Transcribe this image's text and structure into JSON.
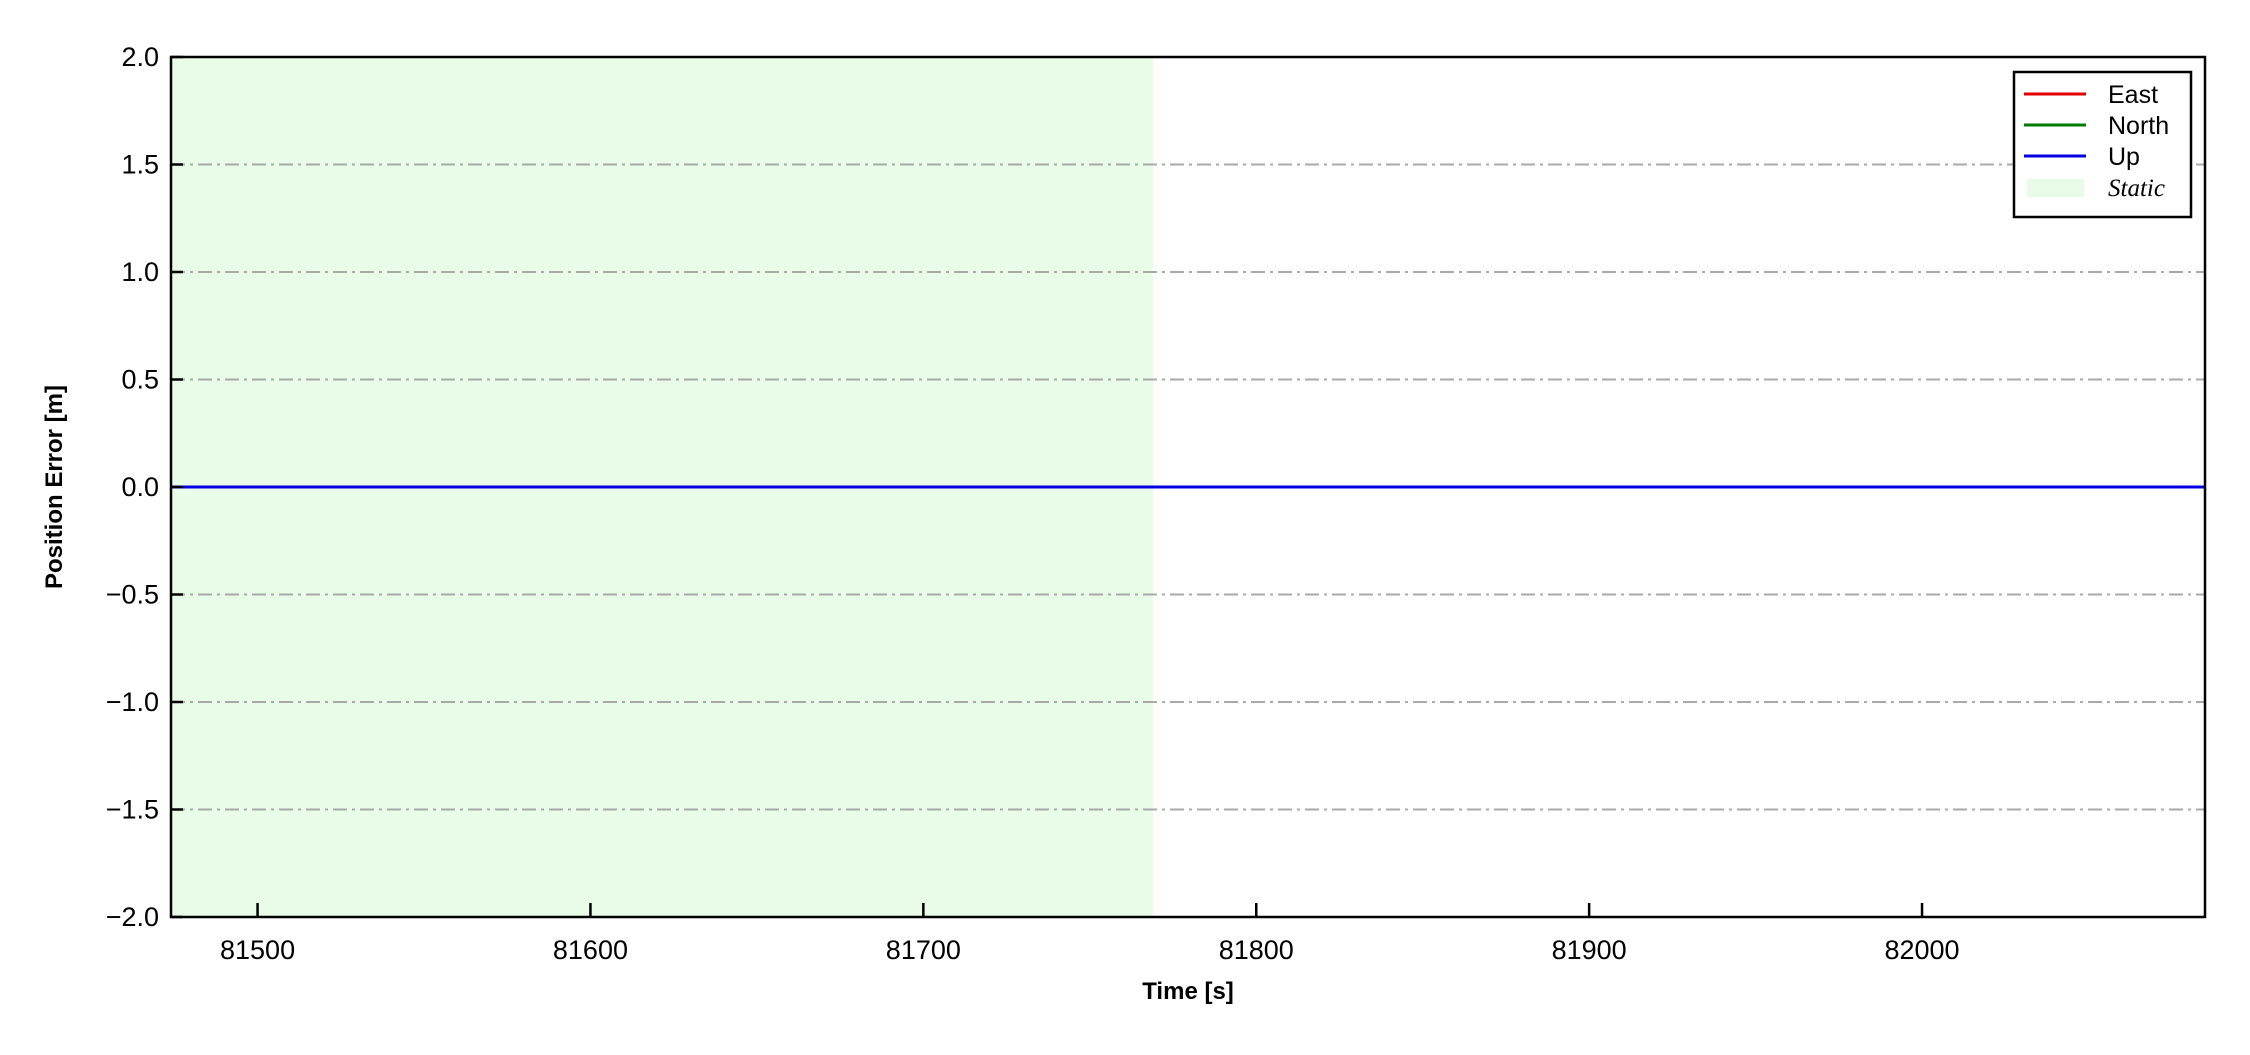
{
  "chart_data": {
    "type": "line",
    "title": "",
    "xlabel": "Time [s]",
    "ylabel": "Position Error [m]",
    "xlim": [
      81474,
      82085
    ],
    "ylim": [
      -2.0,
      2.0
    ],
    "xticks": [
      81500,
      81600,
      81700,
      81800,
      81900,
      82000
    ],
    "xtick_labels": [
      "81500",
      "81600",
      "81700",
      "81800",
      "81900",
      "82000"
    ],
    "yticks": [
      2.0,
      1.5,
      1.0,
      0.5,
      0.0,
      -0.5,
      -1.0,
      -1.5,
      -2.0
    ],
    "ytick_labels": [
      "2.0",
      "1.5",
      "1.0",
      "0.5",
      "0.0",
      "−0.5",
      "−1.0",
      "−1.5",
      "−2.0"
    ],
    "grid": {
      "axis": "y",
      "style": "dash-dot",
      "color": "#a9a9a9"
    },
    "legend_position": "top-right",
    "series": [
      {
        "name": "East",
        "color": "#e00000",
        "x": [
          81474,
          82085
        ],
        "y": [
          0.0,
          0.0
        ]
      },
      {
        "name": "North",
        "color": "#007a00",
        "x": [
          81474,
          82085
        ],
        "y": [
          0.0,
          0.0
        ]
      },
      {
        "name": "Up",
        "color": "#0000e0",
        "x": [
          81474,
          82085
        ],
        "y": [
          0.0,
          0.0
        ]
      }
    ],
    "shaded_regions": [
      {
        "name": "Static",
        "x_start": 81474,
        "x_end": 81769,
        "color": "#e8fce8"
      }
    ]
  }
}
